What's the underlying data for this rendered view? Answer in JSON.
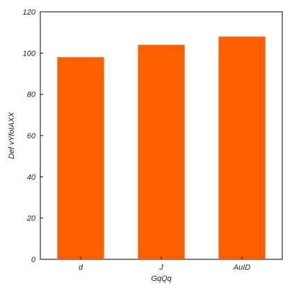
{
  "chart_data": {
    "type": "bar",
    "title": "",
    "xlabel": "GqQq",
    "ylabel": "Def vYfoIAXX",
    "categories": [
      "d",
      "J",
      "AuID"
    ],
    "values": [
      98,
      104,
      108
    ],
    "ylim": [
      0,
      120
    ],
    "yticks": [
      0,
      20,
      40,
      60,
      80,
      100,
      120
    ],
    "grid": false,
    "legend": "none",
    "bar_color": "#ff5f00",
    "axis_color": "#000000"
  }
}
